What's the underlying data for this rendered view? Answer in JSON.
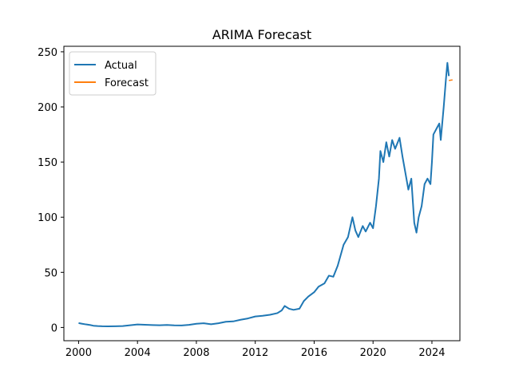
{
  "chart_data": {
    "type": "line",
    "title": "ARIMA Forecast",
    "xlabel": "",
    "ylabel": "",
    "xlim": [
      1999.0,
      2025.9
    ],
    "ylim": [
      -12,
      255
    ],
    "x_ticks": [
      2000,
      2004,
      2008,
      2012,
      2016,
      2020,
      2024
    ],
    "x_tick_labels": [
      "2000",
      "2004",
      "2008",
      "2012",
      "2016",
      "2020",
      "2024"
    ],
    "y_ticks": [
      0,
      50,
      100,
      150,
      200,
      250
    ],
    "y_tick_labels": [
      "0",
      "50",
      "100",
      "150",
      "200",
      "250"
    ],
    "grid": false,
    "legend": "top-left",
    "series": [
      {
        "name": "Actual",
        "color": "#1f77b4",
        "points": [
          [
            2000.0,
            4.0
          ],
          [
            2000.2,
            3.5
          ],
          [
            2000.5,
            2.8
          ],
          [
            2000.8,
            2.2
          ],
          [
            2001.0,
            1.6
          ],
          [
            2001.3,
            1.3
          ],
          [
            2001.6,
            1.1
          ],
          [
            2002.0,
            1.0
          ],
          [
            2002.5,
            1.1
          ],
          [
            2003.0,
            1.3
          ],
          [
            2003.5,
            2.0
          ],
          [
            2004.0,
            2.7
          ],
          [
            2004.5,
            2.5
          ],
          [
            2005.0,
            2.2
          ],
          [
            2005.5,
            2.0
          ],
          [
            2006.0,
            2.3
          ],
          [
            2006.5,
            1.9
          ],
          [
            2007.0,
            1.8
          ],
          [
            2007.5,
            2.4
          ],
          [
            2008.0,
            3.4
          ],
          [
            2008.5,
            3.8
          ],
          [
            2009.0,
            2.9
          ],
          [
            2009.5,
            3.8
          ],
          [
            2010.0,
            5.2
          ],
          [
            2010.5,
            5.5
          ],
          [
            2011.0,
            7.0
          ],
          [
            2011.5,
            8.2
          ],
          [
            2012.0,
            10.0
          ],
          [
            2012.5,
            10.6
          ],
          [
            2013.0,
            11.5
          ],
          [
            2013.5,
            13.0
          ],
          [
            2013.8,
            15.5
          ],
          [
            2014.0,
            19.5
          ],
          [
            2014.3,
            17.0
          ],
          [
            2014.6,
            16.0
          ],
          [
            2015.0,
            17.0
          ],
          [
            2015.3,
            24.0
          ],
          [
            2015.6,
            28.0
          ],
          [
            2016.0,
            32.0
          ],
          [
            2016.3,
            37.0
          ],
          [
            2016.7,
            40.0
          ],
          [
            2017.0,
            47.0
          ],
          [
            2017.3,
            46.0
          ],
          [
            2017.6,
            56.0
          ],
          [
            2018.0,
            75.0
          ],
          [
            2018.3,
            82.0
          ],
          [
            2018.6,
            100.0
          ],
          [
            2018.8,
            88.0
          ],
          [
            2019.0,
            82.0
          ],
          [
            2019.3,
            92.0
          ],
          [
            2019.5,
            87.0
          ],
          [
            2019.8,
            95.0
          ],
          [
            2020.0,
            90.0
          ],
          [
            2020.2,
            110.0
          ],
          [
            2020.4,
            135.0
          ],
          [
            2020.5,
            160.0
          ],
          [
            2020.7,
            150.0
          ],
          [
            2020.9,
            168.0
          ],
          [
            2021.1,
            155.0
          ],
          [
            2021.3,
            170.0
          ],
          [
            2021.5,
            162.0
          ],
          [
            2021.8,
            172.0
          ],
          [
            2022.0,
            155.0
          ],
          [
            2022.2,
            140.0
          ],
          [
            2022.4,
            125.0
          ],
          [
            2022.6,
            135.0
          ],
          [
            2022.8,
            95.0
          ],
          [
            2022.95,
            86.0
          ],
          [
            2023.1,
            100.0
          ],
          [
            2023.3,
            110.0
          ],
          [
            2023.5,
            130.0
          ],
          [
            2023.7,
            135.0
          ],
          [
            2023.9,
            130.0
          ],
          [
            2024.0,
            150.0
          ],
          [
            2024.1,
            175.0
          ],
          [
            2024.3,
            180.0
          ],
          [
            2024.5,
            185.0
          ],
          [
            2024.6,
            170.0
          ],
          [
            2024.8,
            200.0
          ],
          [
            2024.95,
            225.0
          ],
          [
            2025.05,
            240.0
          ],
          [
            2025.15,
            228.0
          ]
        ]
      },
      {
        "name": "Forecast",
        "color": "#ff7f0e",
        "points": [
          [
            2025.15,
            224.0
          ],
          [
            2025.4,
            224.5
          ]
        ]
      }
    ]
  }
}
